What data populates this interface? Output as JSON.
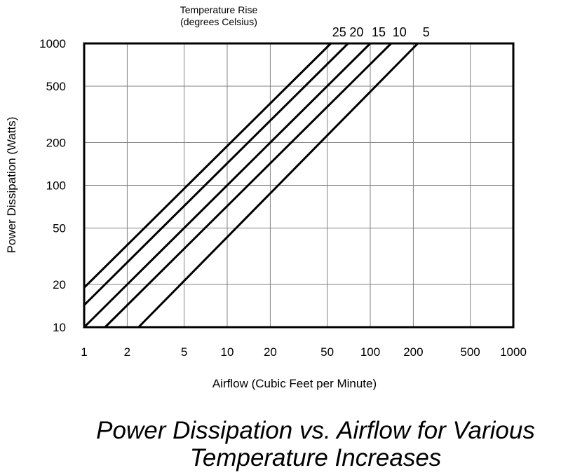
{
  "chart_data": {
    "type": "line",
    "x_scale": "log",
    "y_scale": "log",
    "xlim": [
      1,
      1000
    ],
    "ylim": [
      10,
      1000
    ],
    "grid": true,
    "xlabel": "Airflow (Cubic Feet per Minute)",
    "ylabel": "Power Dissipation (Watts)",
    "x_ticks": [
      "1",
      "2",
      "5",
      "10",
      "20",
      "50",
      "100",
      "200",
      "500",
      "1000"
    ],
    "y_ticks": [
      "10",
      "20",
      "50",
      "100",
      "200",
      "500",
      "1000"
    ],
    "legend_title_line1": "Temperature Rise",
    "legend_title_line2": "(degrees Celsius)",
    "caption_line1": "Power Dissipation vs. Airflow for Various",
    "caption_line2": "Temperature Increases",
    "series": [
      {
        "name": "25",
        "x": [
          1,
          53
        ],
        "y": [
          19,
          1000
        ]
      },
      {
        "name": "20",
        "x": [
          1,
          70
        ],
        "y": [
          14.3,
          1000
        ]
      },
      {
        "name": "15",
        "x": [
          1,
          100
        ],
        "y": [
          10,
          1000
        ]
      },
      {
        "name": "10",
        "x": [
          1.4,
          140
        ],
        "y": [
          10,
          1000
        ]
      },
      {
        "name": "5",
        "x": [
          2.4,
          215
        ],
        "y": [
          10,
          1000
        ]
      }
    ]
  }
}
